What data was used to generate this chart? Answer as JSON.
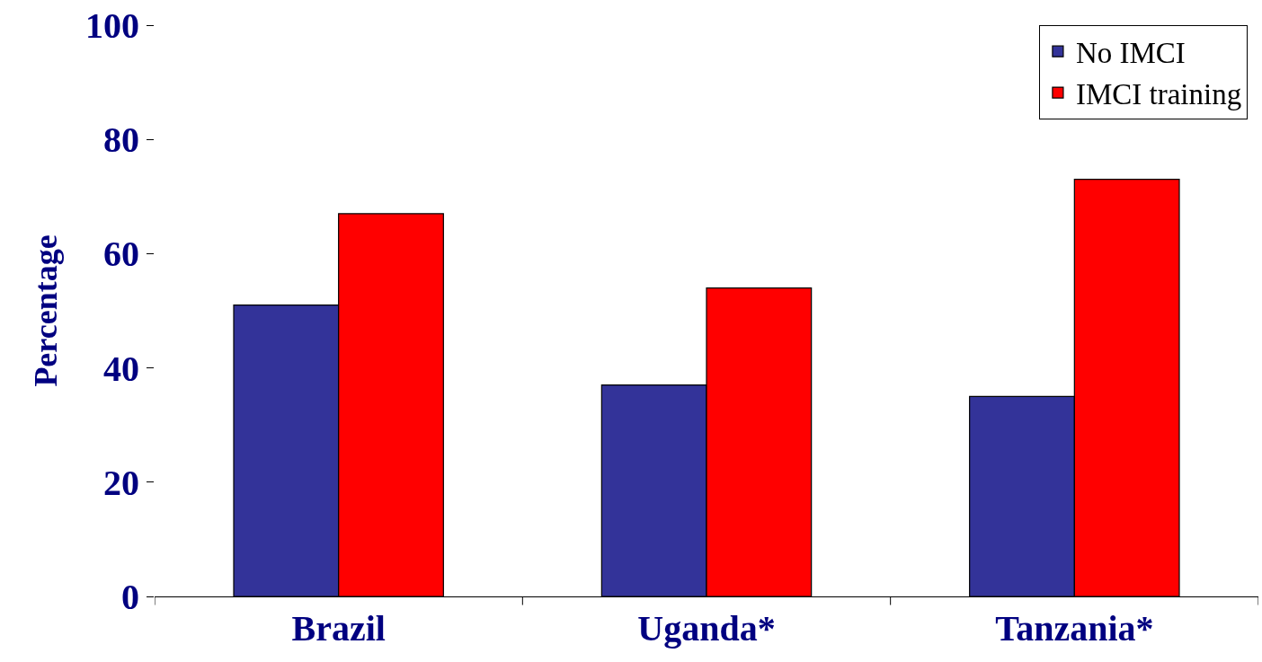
{
  "chart_data": {
    "type": "bar",
    "ylabel": "Percentage",
    "categories": [
      "Brazil",
      "Uganda*",
      "Tanzania*"
    ],
    "series": [
      {
        "name": "No IMCI",
        "color": "#333399",
        "values": [
          51,
          37,
          35
        ]
      },
      {
        "name": "IMCI training",
        "color": "#ff0000",
        "values": [
          67,
          54,
          73
        ]
      }
    ],
    "ylim": [
      0,
      100
    ],
    "yticks": [
      0,
      20,
      40,
      60,
      80,
      100
    ],
    "grid": false,
    "legend": "top right"
  }
}
